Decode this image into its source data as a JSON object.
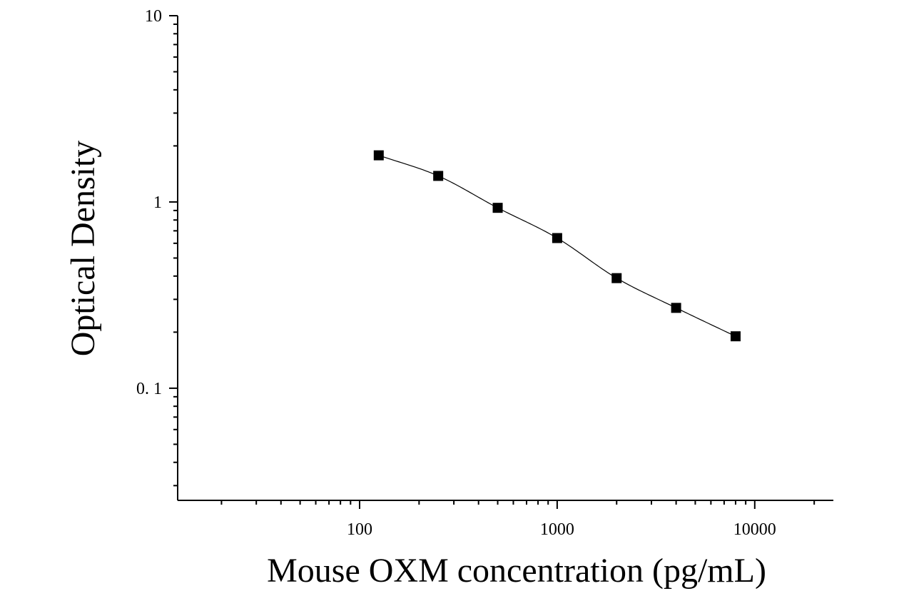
{
  "chart_data": {
    "type": "scatter",
    "title": "",
    "xlabel": "Mouse OXM concentration (pg/mL)",
    "ylabel": "Optical Density",
    "x_scale": "log",
    "y_scale": "log",
    "xlim": [
      12,
      25000
    ],
    "ylim": [
      0.025,
      10
    ],
    "x_ticks": [
      {
        "value": 100,
        "label": "100"
      },
      {
        "value": 1000,
        "label": "1000"
      },
      {
        "value": 10000,
        "label": "10000"
      }
    ],
    "y_ticks": [
      {
        "value": 0.1,
        "label": "0. 1"
      },
      {
        "value": 1,
        "label": "1"
      },
      {
        "value": 10,
        "label": "10"
      }
    ],
    "grid": false,
    "legend": "none",
    "series": [
      {
        "x": [
          125,
          250,
          500,
          1000,
          2000,
          4000,
          8000
        ],
        "y": [
          1.78,
          1.38,
          0.93,
          0.64,
          0.39,
          0.27,
          0.19
        ],
        "marker": "square",
        "color": "#000000"
      }
    ],
    "fit_curve": {
      "type": "smooth",
      "color": "#000000"
    }
  }
}
